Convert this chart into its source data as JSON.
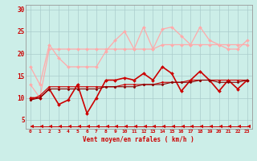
{
  "xlabel": "Vent moyen/en rafales ( km/h )",
  "bg_color": "#cceee8",
  "grid_color": "#aacccc",
  "x": [
    0,
    1,
    2,
    3,
    4,
    5,
    6,
    7,
    8,
    9,
    10,
    11,
    12,
    13,
    14,
    15,
    16,
    17,
    18,
    19,
    20,
    21,
    22,
    23
  ],
  "lines": [
    {
      "y": [
        17,
        13,
        22,
        19,
        17,
        17,
        17,
        17,
        20.5,
        23,
        25,
        21,
        26,
        21,
        25.5,
        26,
        24,
        22,
        26,
        23,
        22,
        21,
        21,
        23
      ],
      "color": "#ffaaaa",
      "lw": 0.9,
      "marker": "D",
      "ms": 2.0
    },
    {
      "y": [
        13,
        10,
        21,
        21,
        21,
        21,
        21,
        21,
        21,
        21,
        21,
        21,
        21,
        21,
        22,
        22,
        22,
        22,
        22,
        22,
        22,
        22,
        22,
        22
      ],
      "color": "#ffaaaa",
      "lw": 0.9,
      "marker": "D",
      "ms": 2.0
    },
    {
      "y": [
        10,
        10,
        12,
        8.5,
        9.5,
        13,
        6.5,
        10,
        14,
        14,
        14.5,
        14,
        15.5,
        14,
        17,
        15.5,
        11.5,
        14,
        16,
        14,
        11.5,
        14,
        12,
        14
      ],
      "color": "#cc0000",
      "lw": 1.2,
      "marker": "D",
      "ms": 2.0
    },
    {
      "y": [
        9.5,
        10.5,
        12.5,
        12.5,
        12.5,
        12.5,
        12.5,
        12.5,
        12.5,
        12.5,
        13,
        13,
        13,
        13,
        13.5,
        13.5,
        13.5,
        14,
        14,
        14,
        14,
        14,
        14,
        14
      ],
      "color": "#cc0000",
      "lw": 0.8,
      "marker": "D",
      "ms": 1.5
    },
    {
      "y": [
        9.5,
        10.0,
        12.0,
        12.0,
        12.0,
        12.0,
        12.0,
        12.0,
        12.5,
        12.5,
        12.5,
        12.5,
        13.0,
        13.0,
        13.0,
        13.5,
        13.5,
        13.5,
        14.0,
        14.0,
        13.5,
        13.5,
        13.5,
        14.0
      ],
      "color": "#880000",
      "lw": 0.8,
      "marker": "D",
      "ms": 1.5
    },
    {
      "y": [
        3.5,
        3.5,
        3.5,
        3.5,
        3.5,
        3.5,
        3.5,
        3.5,
        3.5,
        3.5,
        3.5,
        3.5,
        3.5,
        3.5,
        3.5,
        3.5,
        3.5,
        3.5,
        3.5,
        3.5,
        3.5,
        3.5,
        3.5,
        3.5
      ],
      "color": "#cc0000",
      "lw": 0.7,
      "marker": 4,
      "ms": 3.5
    }
  ],
  "ylim": [
    3,
    31
  ],
  "yticks": [
    5,
    10,
    15,
    20,
    25,
    30
  ],
  "xticks": [
    0,
    1,
    2,
    3,
    4,
    5,
    6,
    7,
    8,
    9,
    10,
    11,
    12,
    13,
    14,
    15,
    16,
    17,
    18,
    19,
    20,
    21,
    22,
    23
  ]
}
